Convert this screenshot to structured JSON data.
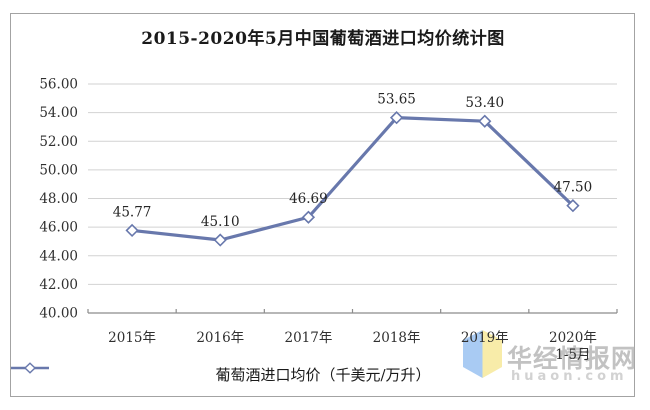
{
  "title": "2015-2020年5月中国葡萄酒进口均价统计图",
  "chart_data": {
    "type": "line",
    "title": "2015-2020年5月中国葡萄酒进口均价统计图",
    "categories": [
      "2015年",
      "2016年",
      "2017年",
      "2018年",
      "2019年",
      "2020年"
    ],
    "category_sublabels": [
      "",
      "",
      "",
      "",
      "",
      "1-5月"
    ],
    "values": [
      45.77,
      45.1,
      46.69,
      53.65,
      53.4,
      47.5
    ],
    "data_labels": [
      "45.77",
      "45.10",
      "46.69",
      "53.65",
      "53.40",
      "47.50"
    ],
    "ylim": [
      40,
      56
    ],
    "ytick_step": 2,
    "ytick_labels": [
      "40.00",
      "42.00",
      "44.00",
      "46.00",
      "48.00",
      "50.00",
      "52.00",
      "54.00",
      "56.00"
    ],
    "grid": true,
    "legend": {
      "label": "葡萄酒进口均价（千美元/万升）",
      "position": "bottom",
      "marker": "open-diamond-on-line"
    },
    "series_color": "#6878ac",
    "marker_fill": "#ffffff",
    "grid_color": "#d2d2d2",
    "axis_color": "#8c8c8c"
  },
  "watermark": {
    "site_name": "华经情报网",
    "site_url": "huaon.com",
    "icon": "open-book-icon",
    "icon_blue": "#a9cbf3",
    "icon_yellow": "#f8eca9"
  }
}
